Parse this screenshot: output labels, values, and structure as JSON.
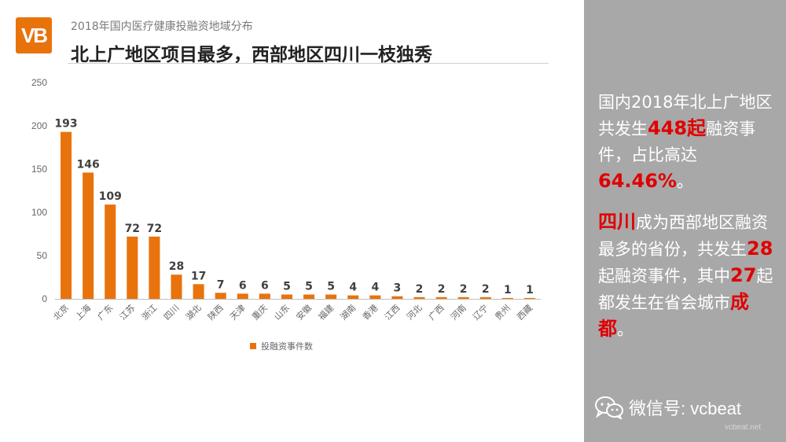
{
  "header": {
    "logo_text": "VB",
    "subtitle": "2018年国内医疗健康投融资地域分布",
    "title": "北上广地区项目最多，西部地区四川一枝独秀"
  },
  "chart_data": {
    "type": "bar",
    "categories": [
      "北京",
      "上海",
      "广东",
      "江苏",
      "浙江",
      "四川",
      "湖北",
      "陕西",
      "天津",
      "重庆",
      "山东",
      "安徽",
      "福建",
      "湖南",
      "香港",
      "江西",
      "河北",
      "广西",
      "河南",
      "辽宁",
      "贵州",
      "西藏"
    ],
    "series": [
      {
        "name": "投融资事件数",
        "values": [
          193,
          146,
          109,
          72,
          72,
          28,
          17,
          7,
          6,
          6,
          5,
          5,
          5,
          4,
          4,
          3,
          2,
          2,
          2,
          2,
          1,
          1
        ]
      }
    ],
    "ylim": [
      0,
      250
    ],
    "yticks": [
      0,
      50,
      100,
      150,
      200,
      250
    ],
    "bar_color": "#e8730c",
    "data_labels": true,
    "grid": false,
    "legend_position": "bottom"
  },
  "panel": {
    "bg_color": "#a8a8a8",
    "highlight_color": "#e00000",
    "p1_a": "国内2018年北上广地区共发生",
    "p1_hl1": "448起",
    "p1_b": "融资事件，占比高达",
    "p1_hl2": "64.46%",
    "p1_c": "。",
    "p2_hl1": "四川",
    "p2_a": "成为西部地区融资最多的省份，共发生",
    "p2_hl2": "28",
    "p2_b": "起融资事件，其中",
    "p2_hl3": "27",
    "p2_c": "起都发生在省会城市",
    "p2_hl4": "成都",
    "p2_d": "。"
  },
  "footer": {
    "wechat_icon": "wechat-icon",
    "wechat_text": "微信号: vcbeat",
    "watermark": "vcbeat.net"
  }
}
